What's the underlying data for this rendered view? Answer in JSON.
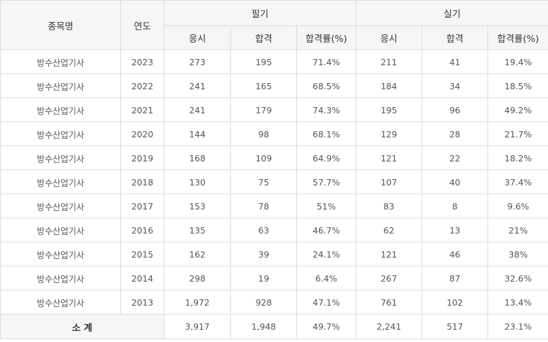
{
  "header": {
    "item_name": "종목명",
    "year": "연도",
    "written": "필기",
    "practical": "실기",
    "applicants": "응시",
    "passed": "합격",
    "pass_rate": "합격률(%)"
  },
  "rows": [
    {
      "name": "방수산업기사",
      "year": "2023",
      "w_app": "273",
      "w_pass": "195",
      "w_rate": "71.4%",
      "p_app": "211",
      "p_pass": "41",
      "p_rate": "19.4%"
    },
    {
      "name": "방수산업기사",
      "year": "2022",
      "w_app": "241",
      "w_pass": "165",
      "w_rate": "68.5%",
      "p_app": "184",
      "p_pass": "34",
      "p_rate": "18.5%"
    },
    {
      "name": "방수산업기사",
      "year": "2021",
      "w_app": "241",
      "w_pass": "179",
      "w_rate": "74.3%",
      "p_app": "195",
      "p_pass": "96",
      "p_rate": "49.2%"
    },
    {
      "name": "방수산업기사",
      "year": "2020",
      "w_app": "144",
      "w_pass": "98",
      "w_rate": "68.1%",
      "p_app": "129",
      "p_pass": "28",
      "p_rate": "21.7%"
    },
    {
      "name": "방수산업기사",
      "year": "2019",
      "w_app": "168",
      "w_pass": "109",
      "w_rate": "64.9%",
      "p_app": "121",
      "p_pass": "22",
      "p_rate": "18.2%"
    },
    {
      "name": "방수산업기사",
      "year": "2018",
      "w_app": "130",
      "w_pass": "75",
      "w_rate": "57.7%",
      "p_app": "107",
      "p_pass": "40",
      "p_rate": "37.4%"
    },
    {
      "name": "방수산업기사",
      "year": "2017",
      "w_app": "153",
      "w_pass": "78",
      "w_rate": "51%",
      "p_app": "83",
      "p_pass": "8",
      "p_rate": "9.6%"
    },
    {
      "name": "방수산업기사",
      "year": "2016",
      "w_app": "135",
      "w_pass": "63",
      "w_rate": "46.7%",
      "p_app": "62",
      "p_pass": "13",
      "p_rate": "21%"
    },
    {
      "name": "방수산업기사",
      "year": "2015",
      "w_app": "162",
      "w_pass": "39",
      "w_rate": "24.1%",
      "p_app": "121",
      "p_pass": "46",
      "p_rate": "38%"
    },
    {
      "name": "방수산업기사",
      "year": "2014",
      "w_app": "298",
      "w_pass": "19",
      "w_rate": "6.4%",
      "p_app": "267",
      "p_pass": "87",
      "p_rate": "32.6%"
    },
    {
      "name": "방수산업기사",
      "year": "2013",
      "w_app": "1,972",
      "w_pass": "928",
      "w_rate": "47.1%",
      "p_app": "761",
      "p_pass": "102",
      "p_rate": "13.4%"
    }
  ],
  "total": {
    "label": "소 계",
    "w_app": "3,917",
    "w_pass": "1,948",
    "w_rate": "49.7%",
    "p_app": "2,241",
    "p_pass": "517",
    "p_rate": "23.1%"
  }
}
